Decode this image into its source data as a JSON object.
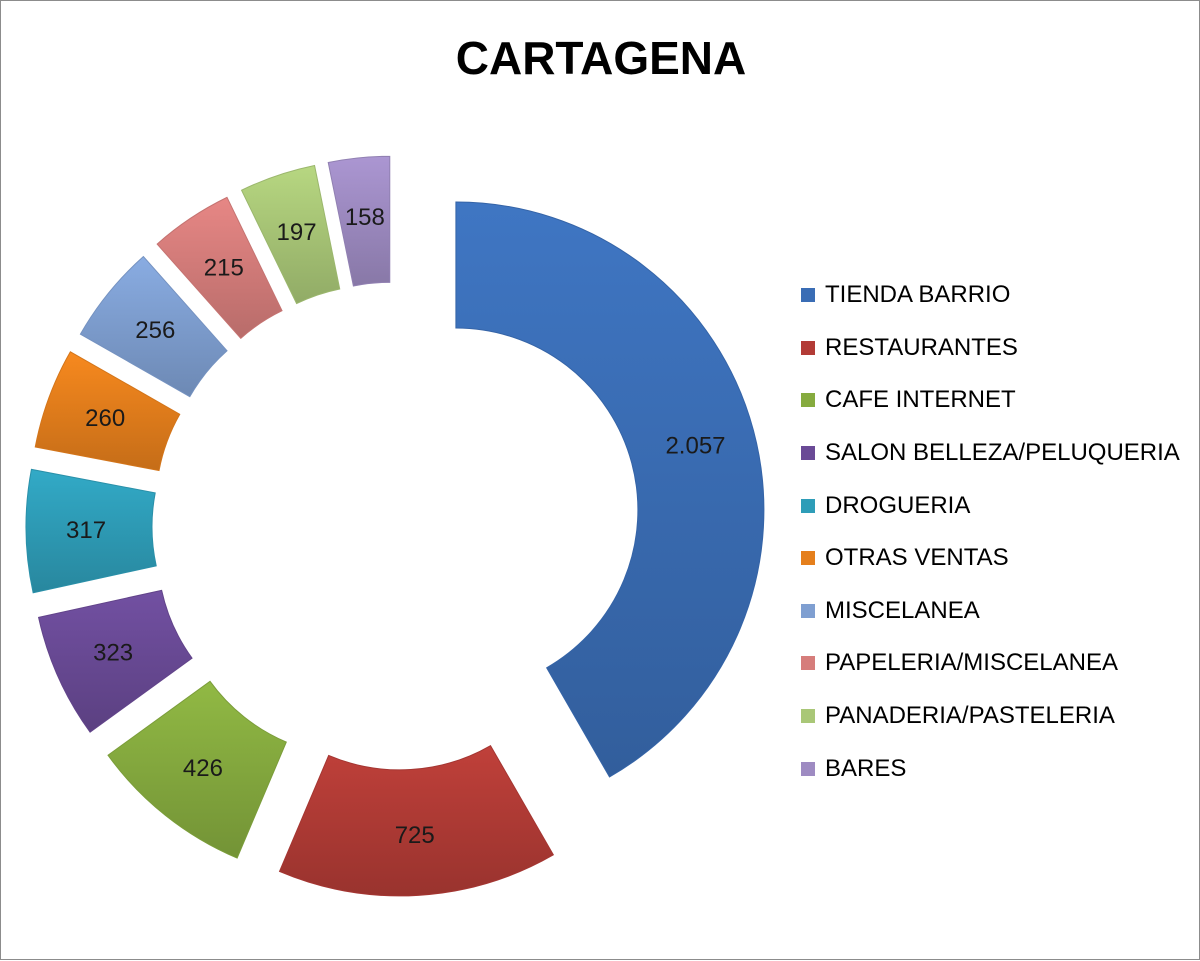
{
  "chart_data": {
    "type": "pie",
    "variant": "exploded-doughnut",
    "title": "CARTAGENA",
    "categories": [
      "TIENDA BARRIO",
      "RESTAURANTES",
      "CAFE INTERNET",
      "SALON BELLEZA/PELUQUERIA",
      "DROGUERIA",
      "OTRAS VENTAS",
      "MISCELANEA",
      "PAPELERIA/MISCELANEA",
      "PANADERIA/PASTELERIA",
      "BARES"
    ],
    "values": [
      2057,
      725,
      426,
      323,
      317,
      260,
      256,
      215,
      197,
      158
    ],
    "data_labels": [
      "2.057",
      "725",
      "426",
      "323",
      "317",
      "260",
      "256",
      "215",
      "197",
      "158"
    ],
    "colors": [
      "#3a6db5",
      "#b23b36",
      "#86ab3f",
      "#6a4a96",
      "#2e9db8",
      "#e57f1c",
      "#7f9fd1",
      "#d67d7b",
      "#a9c777",
      "#9e8bc2"
    ],
    "legend_position": "right"
  }
}
